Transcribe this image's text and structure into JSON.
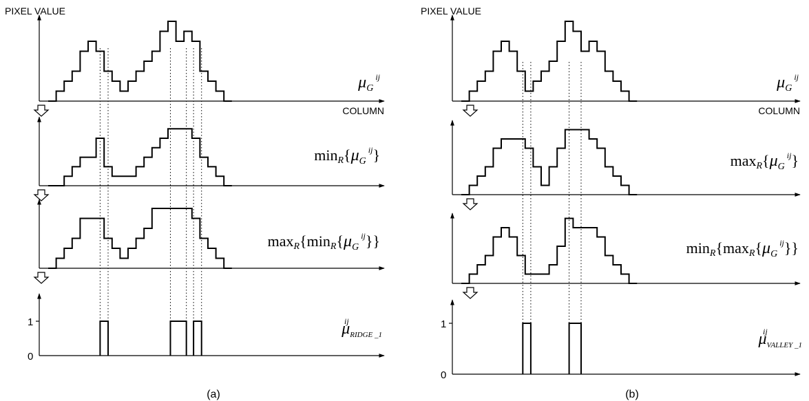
{
  "diagram": {
    "pixel_value_label": "PIXEL VALUE",
    "column_label": "COLUMN",
    "tick_one": "1",
    "tick_zero": "0",
    "panels": [
      {
        "id": "a",
        "caption": "(a)",
        "rows": [
          {
            "profile": [
              0,
              1,
              2,
              3,
              5,
              6,
              5,
              3,
              2,
              1,
              2,
              3,
              4,
              5,
              7,
              8,
              6,
              7,
              6,
              3,
              2,
              1,
              0
            ],
            "label": {
              "pre": "",
              "op": "",
              "fn": "",
              "sub": "",
              "mu": "μ",
              "msub": "G",
              "sup": "ij",
              "post": ""
            }
          },
          {
            "profile": [
              0,
              0,
              1,
              2,
              3,
              3,
              5,
              2,
              1,
              1,
              1,
              2,
              3,
              4,
              5,
              6,
              6,
              6,
              5,
              3,
              2,
              1,
              0
            ],
            "label": {
              "pre": "min",
              "op": "R",
              "fn": "",
              "sub": "",
              "mu": "μ",
              "msub": "G",
              "sup": "ij",
              "post": "}"
            }
          },
          {
            "profile": [
              0,
              1,
              2,
              3,
              5,
              5,
              5,
              3,
              2,
              1,
              2,
              3,
              4,
              6,
              6,
              6,
              6,
              6,
              5,
              3,
              2,
              1,
              0
            ],
            "label": {
              "pre": "max",
              "op": "R",
              "fn": "min",
              "sub": "R",
              "mu": "μ",
              "msub": "G",
              "sup": "ij",
              "post": "}}"
            }
          }
        ],
        "binary": {
          "pulses": [
            [
              6.5,
              7.5
            ],
            [
              15.3,
              17.3
            ],
            [
              18.2,
              19.2
            ]
          ],
          "label": {
            "mu": "μ",
            "sub": "RIDGE _1",
            "sup": "ij"
          }
        },
        "guide_columns": [
          6.5,
          7.5,
          15.3,
          17.3,
          18.2,
          19.2
        ]
      },
      {
        "id": "b",
        "caption": "(b)",
        "rows": [
          {
            "profile": [
              0,
              1,
              2,
              3,
              5,
              6,
              5,
              3,
              1,
              2,
              3,
              4,
              6,
              8,
              7,
              5,
              6,
              5,
              3,
              2,
              1,
              0
            ],
            "label": {
              "pre": "",
              "op": "",
              "fn": "",
              "sub": "",
              "mu": "μ",
              "msub": "G",
              "sup": "ij",
              "post": ""
            }
          },
          {
            "profile": [
              0,
              1,
              2,
              3,
              5,
              6,
              6,
              6,
              5,
              3,
              1,
              3,
              5,
              7,
              7,
              7,
              6,
              5,
              3,
              2,
              1,
              0
            ],
            "label": {
              "pre": "max",
              "op": "R",
              "fn": "",
              "sub": "",
              "mu": "μ",
              "msub": "G",
              "sup": "ij",
              "post": "}"
            }
          },
          {
            "profile": [
              0,
              1,
              2,
              3,
              5,
              6,
              5,
              3,
              1,
              1,
              1,
              2,
              4,
              7,
              6,
              6,
              6,
              5,
              3,
              2,
              1,
              0
            ],
            "label": {
              "pre": "min",
              "op": "R",
              "fn": "max",
              "sub": "R",
              "mu": "μ",
              "msub": "G",
              "sup": "ij",
              "post": "}}"
            }
          }
        ],
        "binary": {
          "pulses": [
            [
              7.7,
              8.7
            ],
            [
              13.5,
              15.0
            ]
          ],
          "label": {
            "mu": "μ",
            "sub": "VALLEY _1",
            "sup": "ij"
          }
        },
        "guide_columns": [
          7.7,
          8.7,
          13.5,
          15.0
        ]
      }
    ]
  }
}
